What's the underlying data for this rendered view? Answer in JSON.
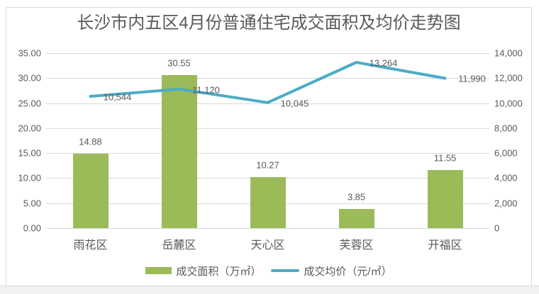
{
  "colors": {
    "bar": "#9BBB59",
    "line": "#4BACC6",
    "grid": "#D9D9D9",
    "border": "#D9D9D9",
    "axis_text": "#595959",
    "footer_strip": "#F1F1F1"
  },
  "chart_data": {
    "type": "combo-bar-line",
    "title": "长沙市内五区4月份普通住宅成交面积及均价走势图",
    "categories": [
      "雨花区",
      "岳麓区",
      "天心区",
      "芙蓉区",
      "开福区"
    ],
    "series": [
      {
        "name": "成交面积（万㎡）",
        "type": "bar",
        "axis": "left",
        "color": "#9BBB59",
        "values": [
          14.88,
          30.55,
          10.27,
          3.85,
          11.55
        ],
        "labels": [
          "14.88",
          "30.55",
          "10.27",
          "3.85",
          "11.55"
        ]
      },
      {
        "name": "成交均价（元/㎡）",
        "type": "line",
        "axis": "right",
        "color": "#4BACC6",
        "values": [
          10544,
          11120,
          10045,
          13264,
          11990
        ],
        "labels": [
          "10,544",
          "11,120",
          "10,045",
          "13,264",
          "11,990"
        ]
      }
    ],
    "left_axis": {
      "min": 0,
      "max": 35,
      "step": 5,
      "ticks": [
        "0.00",
        "5.00",
        "10.00",
        "15.00",
        "20.00",
        "25.00",
        "30.00",
        "35.00"
      ]
    },
    "right_axis": {
      "min": 0,
      "max": 14000,
      "step": 2000,
      "ticks": [
        "0",
        "2,000",
        "4,000",
        "6,000",
        "8,000",
        "10,000",
        "12,000",
        "14,000"
      ]
    },
    "grid": true,
    "legend_position": "bottom",
    "legend": [
      {
        "label": "成交面积（万㎡）",
        "swatch": "bar-swatch",
        "color": "#9BBB59"
      },
      {
        "label": "成交均价（元/㎡）",
        "swatch": "line-swatch",
        "color": "#4BACC6"
      }
    ]
  }
}
